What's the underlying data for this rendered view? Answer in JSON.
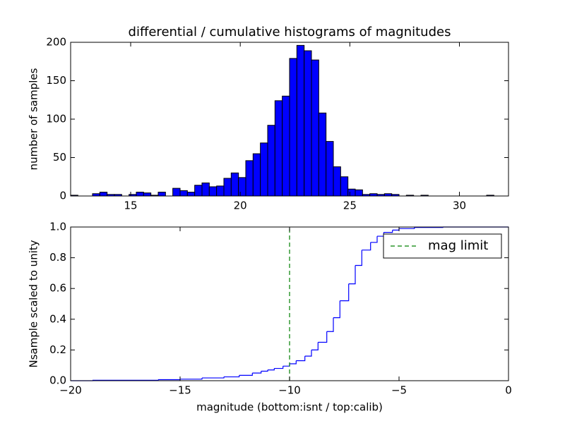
{
  "chart_data": [
    {
      "type": "histogram",
      "title": "differential / cumulative histograms of magnitudes",
      "ylabel": "number of samples",
      "bins": [
        12.26,
        12.593,
        12.926,
        13.259,
        13.592,
        13.925,
        14.258,
        14.591,
        14.924,
        15.257,
        15.59,
        15.923,
        16.256,
        16.589,
        16.922,
        17.255,
        17.588,
        17.921,
        18.254,
        18.587,
        18.92,
        19.253,
        19.586,
        19.919,
        20.252,
        20.585,
        20.918,
        21.251,
        21.584,
        21.917,
        22.25,
        22.583,
        22.916,
        23.249,
        23.582,
        23.915,
        24.248,
        24.581,
        24.914,
        25.247,
        25.58,
        25.913,
        26.246,
        26.579,
        26.912,
        27.245,
        27.578,
        27.911,
        28.244,
        28.577,
        28.91,
        29.243,
        29.576,
        29.909,
        30.242,
        30.575,
        30.908,
        31.241,
        31.574,
        31.907,
        32.24
      ],
      "values": [
        1,
        0,
        0,
        3,
        5,
        2,
        2,
        0,
        2,
        5,
        4,
        1,
        5,
        0,
        10,
        7,
        5,
        14,
        17,
        12,
        13,
        23,
        30,
        24,
        46,
        55,
        69,
        92,
        124,
        130,
        179,
        196,
        189,
        177,
        108,
        71,
        38,
        25,
        9,
        8,
        2,
        3,
        2,
        3,
        2,
        0,
        1,
        0,
        1,
        0,
        0,
        0,
        0,
        0,
        0,
        0,
        0,
        1,
        0,
        0
      ],
      "color": "#0000ff",
      "xlim": [
        12.26,
        32.24
      ],
      "ylim": [
        0,
        200
      ],
      "xticks": [
        15,
        20,
        25,
        30
      ],
      "yticks": [
        0,
        50,
        100,
        150,
        200
      ]
    },
    {
      "type": "line",
      "xlabel": "magnitude (bottom:isnt / top:calib)",
      "ylabel": "Nsample scaled to unity",
      "x": [
        -20,
        -19,
        -16,
        -15,
        -14,
        -13,
        -12.3,
        -11.7,
        -11.3,
        -11,
        -10.7,
        -10.3,
        -10,
        -9.7,
        -9.3,
        -9,
        -8.7,
        -8.3,
        -8,
        -7.7,
        -7.3,
        -7,
        -6.7,
        -6.3,
        -6,
        -5.7,
        -5.3,
        -5,
        -4.3,
        -3,
        0
      ],
      "series": [
        {
          "color": "#0000ff",
          "drawstyle": "steps-post",
          "values": [
            0,
            0.003,
            0.007,
            0.01,
            0.018,
            0.025,
            0.035,
            0.05,
            0.062,
            0.07,
            0.08,
            0.095,
            0.11,
            0.13,
            0.16,
            0.2,
            0.25,
            0.32,
            0.41,
            0.52,
            0.63,
            0.75,
            0.85,
            0.9,
            0.94,
            0.965,
            0.98,
            0.99,
            0.997,
            1.0,
            1.0
          ]
        },
        {
          "name": "mag limit",
          "color": "#008000",
          "linestyle": "dashed",
          "x": [
            -10,
            -10
          ],
          "values": [
            0,
            1
          ]
        }
      ],
      "legend": "upper right",
      "xlim": [
        -20,
        0
      ],
      "ylim": [
        0,
        1
      ],
      "xticks": [
        {
          "value": -20,
          "label": "−20"
        },
        {
          "value": -15,
          "label": "−15"
        },
        {
          "value": -10,
          "label": "−10"
        },
        {
          "value": -5,
          "label": "−5"
        },
        0
      ],
      "yticks": [
        {
          "value": 0,
          "label": "0.0"
        },
        {
          "value": 0.2,
          "label": "0.2"
        },
        {
          "value": 0.4,
          "label": "0.4"
        },
        {
          "value": 0.6,
          "label": "0.6"
        },
        {
          "value": 0.8,
          "label": "0.8"
        },
        {
          "value": 1,
          "label": "1.0"
        }
      ]
    }
  ]
}
